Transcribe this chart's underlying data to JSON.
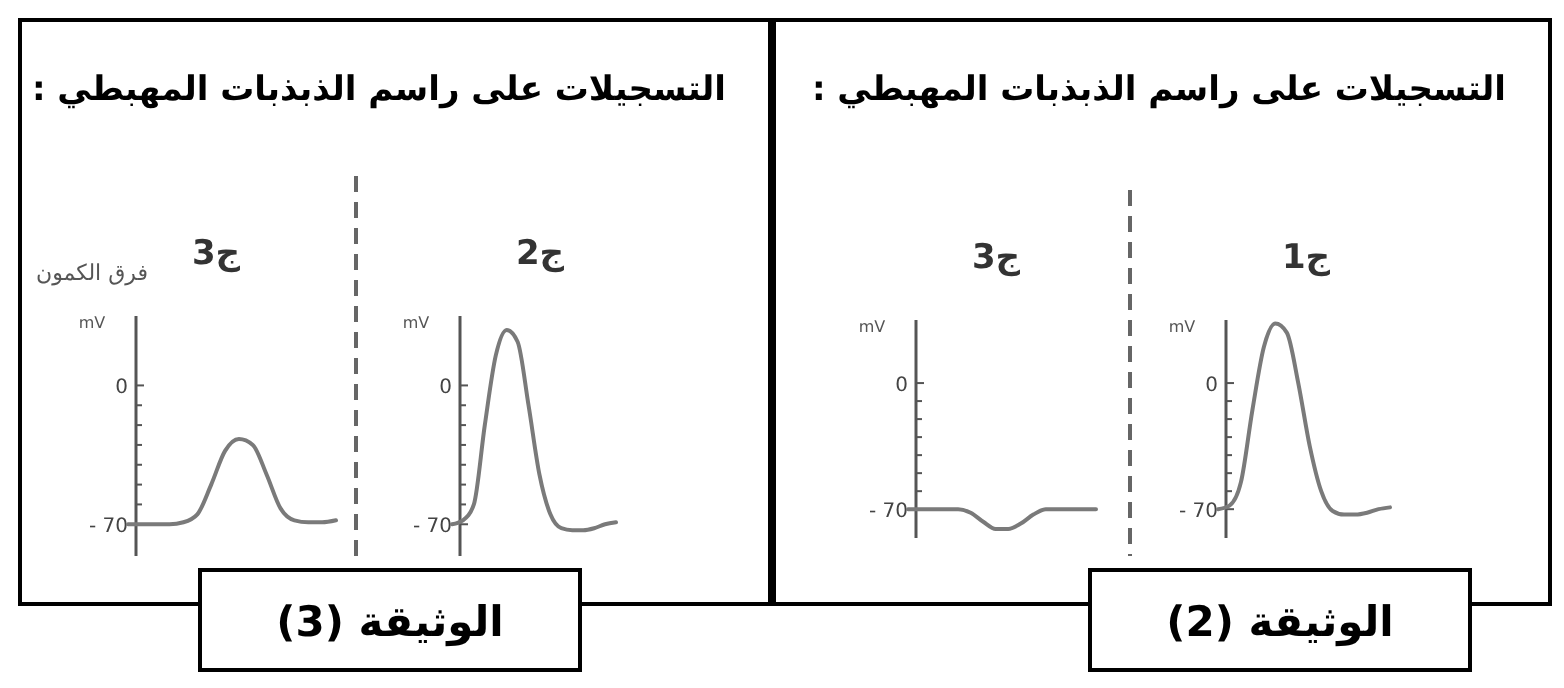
{
  "chart_data": [
    {
      "type": "line",
      "title": "ج3",
      "ylabel": "mV",
      "categories": [
        null,
        null,
        null,
        null,
        null,
        null,
        null,
        null,
        null,
        null,
        null,
        null,
        null,
        null,
        null,
        null
      ],
      "values": [
        -70,
        -70,
        -70,
        -70,
        -69,
        -65,
        -50,
        -33,
        -27,
        -30,
        -45,
        -62,
        -68,
        -69,
        -69,
        -68
      ],
      "color": "#7a7a7a",
      "ylim": [
        -86,
        35
      ],
      "yticks": [
        {
          "value": 0,
          "label": "0"
        },
        {
          "value": -10,
          "label": null
        },
        {
          "value": -20,
          "label": null
        },
        {
          "value": -30,
          "label": null
        },
        {
          "value": -40,
          "label": null
        },
        {
          "value": -50,
          "label": null
        },
        {
          "value": -60,
          "label": null
        },
        {
          "value": -70,
          "label": "- 70"
        }
      ],
      "annotations": [
        "التسجيلات على راسم الذبذبات المهبطي :",
        "الوثيقة (3)",
        "فرق الكمون"
      ]
    },
    {
      "type": "line",
      "title": "ج2",
      "ylabel": "mV",
      "categories": [
        null,
        null,
        null,
        null,
        null,
        null,
        null,
        null,
        null,
        null,
        null,
        null,
        null,
        null,
        null,
        null
      ],
      "values": [
        -70,
        -68,
        -60,
        -20,
        15,
        28,
        22,
        -10,
        -45,
        -65,
        -72,
        -73,
        -73,
        -72,
        -70,
        -69
      ],
      "color": "#7a7a7a",
      "ylim": [
        -86,
        35
      ],
      "yticks": [
        {
          "value": 0,
          "label": "0"
        },
        {
          "value": -10,
          "label": null
        },
        {
          "value": -20,
          "label": null
        },
        {
          "value": -30,
          "label": null
        },
        {
          "value": -40,
          "label": null
        },
        {
          "value": -50,
          "label": null
        },
        {
          "value": -60,
          "label": null
        },
        {
          "value": -70,
          "label": "- 70"
        }
      ]
    },
    {
      "type": "line",
      "title": "ج3",
      "ylabel": "mV",
      "categories": [
        null,
        null,
        null,
        null,
        null,
        null,
        null,
        null,
        null,
        null,
        null,
        null,
        null,
        null,
        null,
        null
      ],
      "values": [
        -70,
        -70,
        -70,
        -70,
        -70,
        -72,
        -77,
        -81,
        -81,
        -78,
        -73,
        -70,
        -70,
        -70,
        -70,
        -70
      ],
      "color": "#7a7a7a",
      "ylim": [
        -86,
        35
      ],
      "yticks": [
        {
          "value": 0,
          "label": "0"
        },
        {
          "value": -10,
          "label": null
        },
        {
          "value": -20,
          "label": null
        },
        {
          "value": -30,
          "label": null
        },
        {
          "value": -40,
          "label": null
        },
        {
          "value": -50,
          "label": null
        },
        {
          "value": -60,
          "label": null
        },
        {
          "value": -70,
          "label": "- 70"
        }
      ],
      "annotations": [
        "التسجيلات على راسم الذبذبات المهبطي :",
        "الوثيقة (2)"
      ]
    },
    {
      "type": "line",
      "title": "ج1",
      "ylabel": "mV",
      "categories": [
        null,
        null,
        null,
        null,
        null,
        null,
        null,
        null,
        null,
        null,
        null,
        null,
        null,
        null,
        null,
        null
      ],
      "values": [
        -70,
        -68,
        -55,
        -15,
        20,
        33,
        28,
        0,
        -35,
        -60,
        -71,
        -73,
        -73,
        -72,
        -70,
        -69
      ],
      "color": "#7a7a7a",
      "ylim": [
        -86,
        35
      ],
      "yticks": [
        {
          "value": 0,
          "label": "0"
        },
        {
          "value": -10,
          "label": null
        },
        {
          "value": -20,
          "label": null
        },
        {
          "value": -30,
          "label": null
        },
        {
          "value": -40,
          "label": null
        },
        {
          "value": -50,
          "label": null
        },
        {
          "value": -60,
          "label": null
        },
        {
          "value": -70,
          "label": "- 70"
        }
      ]
    }
  ]
}
